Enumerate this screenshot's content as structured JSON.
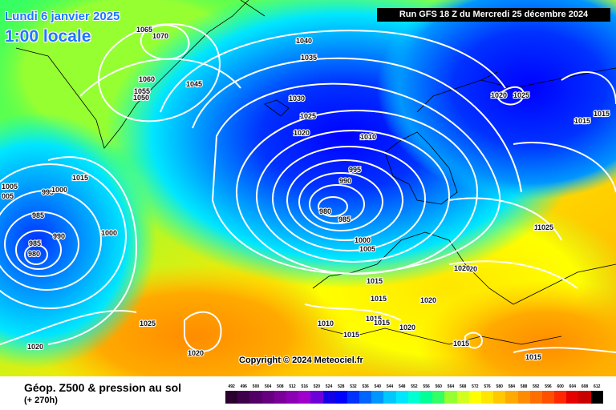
{
  "header": {
    "date_label": "Lundi 6 janvier 2025",
    "time_label": "1:00 locale",
    "run_label": "Run GFS 18 Z du Mercredi 25 décembre 2024"
  },
  "copyright": "Copyright © 2024 Meteociel.fr",
  "footer": {
    "title": "Géop. Z500 & pression au sol",
    "subtitle": "(+ 270h)"
  },
  "colors": {
    "low_geopotential": "#0000ff",
    "high_geopotential": "#ff8000",
    "isobar": "#ffffff"
  },
  "scale": [
    {
      "label": "492",
      "color": "#2b0030"
    },
    {
      "label": "496",
      "color": "#3d004a"
    },
    {
      "label": "500",
      "color": "#520066"
    },
    {
      "label": "504",
      "color": "#66007f"
    },
    {
      "label": "508",
      "color": "#7a0099"
    },
    {
      "label": "512",
      "color": "#8c00b3"
    },
    {
      "label": "516",
      "color": "#a000cc"
    },
    {
      "label": "520",
      "color": "#6e00d9"
    },
    {
      "label": "524",
      "color": "#1400e6"
    },
    {
      "label": "528",
      "color": "#0000ff"
    },
    {
      "label": "532",
      "color": "#0032ff"
    },
    {
      "label": "536",
      "color": "#0064ff"
    },
    {
      "label": "540",
      "color": "#0096ff"
    },
    {
      "label": "544",
      "color": "#00c8ff"
    },
    {
      "label": "548",
      "color": "#00e6ff"
    },
    {
      "label": "552",
      "color": "#00ffd2"
    },
    {
      "label": "556",
      "color": "#00ff96"
    },
    {
      "label": "560",
      "color": "#32ff64"
    },
    {
      "label": "564",
      "color": "#96ff32"
    },
    {
      "label": "568",
      "color": "#d2ff1e"
    },
    {
      "label": "572",
      "color": "#ffff00"
    },
    {
      "label": "576",
      "color": "#ffe600"
    },
    {
      "label": "580",
      "color": "#ffc800"
    },
    {
      "label": "584",
      "color": "#ffaa00"
    },
    {
      "label": "588",
      "color": "#ff8c00"
    },
    {
      "label": "592",
      "color": "#ff6e00"
    },
    {
      "label": "596",
      "color": "#ff5000"
    },
    {
      "label": "600",
      "color": "#ff2800"
    },
    {
      "label": "604",
      "color": "#e60000"
    },
    {
      "label": "608",
      "color": "#c80000"
    },
    {
      "label": "612",
      "color": "#000000"
    }
  ],
  "pressure_labels": [
    {
      "text": "1065"
    },
    {
      "text": "1070"
    },
    {
      "text": "1060"
    },
    {
      "text": "1055"
    },
    {
      "text": "1050"
    },
    {
      "text": "1045"
    },
    {
      "text": "1040"
    },
    {
      "text": "1035"
    },
    {
      "text": "1030"
    },
    {
      "text": "1025"
    },
    {
      "text": "1020"
    },
    {
      "text": "1010"
    },
    {
      "text": "995"
    },
    {
      "text": "990"
    },
    {
      "text": "980"
    },
    {
      "text": "985"
    },
    {
      "text": "1000"
    },
    {
      "text": "1005"
    },
    {
      "text": "1015"
    },
    {
      "text": "1015"
    },
    {
      "text": "1020"
    },
    {
      "text": "1015"
    },
    {
      "text": "1015"
    },
    {
      "text": "1010"
    },
    {
      "text": "1015"
    },
    {
      "text": "1020"
    },
    {
      "text": "1015"
    },
    {
      "text": "1015"
    },
    {
      "text": "1020"
    },
    {
      "text": "1025"
    },
    {
      "text": "1020"
    },
    {
      "text": "1025"
    },
    {
      "text": "1020"
    },
    {
      "text": "1020"
    },
    {
      "text": "1020"
    },
    {
      "text": "1015"
    },
    {
      "text": "1025"
    },
    {
      "text": "1020"
    },
    {
      "text": "1015"
    },
    {
      "text": "1025"
    },
    {
      "text": "1020"
    },
    {
      "text": "1005"
    },
    {
      "text": "005"
    },
    {
      "text": "995"
    },
    {
      "text": "1000"
    },
    {
      "text": "1015"
    },
    {
      "text": "985"
    },
    {
      "text": "985"
    },
    {
      "text": "990"
    },
    {
      "text": "980"
    },
    {
      "text": "1000"
    }
  ]
}
